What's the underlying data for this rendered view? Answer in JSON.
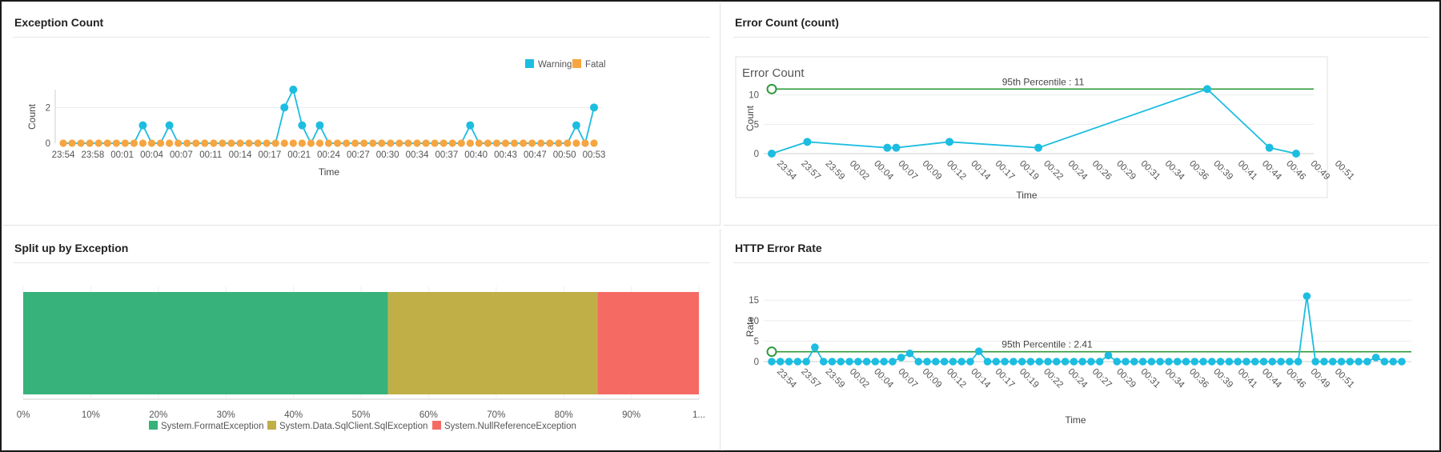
{
  "panels": {
    "exception_count": {
      "title": "Exception Count"
    },
    "error_count": {
      "title": "Error Count (count)"
    },
    "split_by_exception": {
      "title": "Split up by Exception"
    },
    "http_error_rate": {
      "title": "HTTP Error Rate"
    }
  },
  "colors": {
    "warning": "#1cbde0",
    "fatal": "#f6a540",
    "percentile_line": "#2e9b3a",
    "format_exception": "#37b27a",
    "sqlclient_exception": "#c0ae47",
    "nullref_exception": "#f56b63"
  },
  "chart_data": [
    {
      "type": "line",
      "panel": "exception_count",
      "xlabel": "Time",
      "ylabel": "Count",
      "ylim": [
        0,
        3
      ],
      "yticks": [
        0,
        2
      ],
      "x_tick_labels": [
        "23:54",
        "23:58",
        "00:01",
        "00:04",
        "00:07",
        "00:11",
        "00:14",
        "00:17",
        "00:21",
        "00:24",
        "00:27",
        "00:30",
        "00:34",
        "00:37",
        "00:40",
        "00:43",
        "00:47",
        "00:50",
        "00:53"
      ],
      "legend": {
        "position": "top-right",
        "entries": [
          "Warning",
          "Fatal"
        ]
      },
      "series": [
        {
          "name": "Warning",
          "values": [
            0,
            0,
            0,
            0,
            0,
            0,
            0,
            0,
            0,
            1,
            0,
            0,
            1,
            0,
            0,
            0,
            0,
            0,
            0,
            0,
            0,
            0,
            0,
            0,
            0,
            2,
            3,
            1,
            0,
            1,
            0,
            0,
            0,
            0,
            0,
            0,
            0,
            0,
            0,
            0,
            0,
            0,
            0,
            0,
            0,
            0,
            1,
            0,
            0,
            0,
            0,
            0,
            0,
            0,
            0,
            0,
            0,
            0,
            1,
            0,
            2
          ]
        },
        {
          "name": "Fatal",
          "values": [
            0,
            0,
            0,
            0,
            0,
            0,
            0,
            0,
            0,
            0,
            0,
            0,
            0,
            0,
            0,
            0,
            0,
            0,
            0,
            0,
            0,
            0,
            0,
            0,
            0,
            0,
            0,
            0,
            0,
            0,
            0,
            0,
            0,
            0,
            0,
            0,
            0,
            0,
            0,
            0,
            0,
            0,
            0,
            0,
            0,
            0,
            0,
            0,
            0,
            0,
            0,
            0,
            0,
            0,
            0,
            0,
            0,
            0,
            0,
            0,
            0
          ]
        }
      ]
    },
    {
      "type": "line",
      "panel": "error_count",
      "title": "Error Count",
      "xlabel": "Time",
      "ylabel": "Count",
      "ylim": [
        0,
        12
      ],
      "yticks": [
        0,
        5,
        10
      ],
      "x_tick_labels": [
        "23:54",
        "23:57",
        "23:59",
        "00:02",
        "00:04",
        "00:07",
        "00:09",
        "00:12",
        "00:14",
        "00:17",
        "00:19",
        "00:22",
        "00:24",
        "00:26",
        "00:29",
        "00:31",
        "00:34",
        "00:36",
        "00:39",
        "00:41",
        "00:44",
        "00:46",
        "00:49",
        "00:51"
      ],
      "percentile": {
        "label": "95th Percentile : 11",
        "value": 11
      },
      "series": [
        {
          "name": "Error Count",
          "points": [
            {
              "x": "23:54",
              "y": 0
            },
            {
              "x": "23:58",
              "y": 2
            },
            {
              "x": "00:07",
              "y": 1
            },
            {
              "x": "00:08",
              "y": 1
            },
            {
              "x": "00:14",
              "y": 2
            },
            {
              "x": "00:24",
              "y": 1
            },
            {
              "x": "00:43",
              "y": 11
            },
            {
              "x": "00:50",
              "y": 1
            },
            {
              "x": "00:53",
              "y": 0
            }
          ]
        }
      ]
    },
    {
      "type": "bar",
      "panel": "split_by_exception",
      "orientation": "horizontal-stacked-100",
      "x_tick_labels": [
        "0%",
        "10%",
        "20%",
        "30%",
        "40%",
        "50%",
        "60%",
        "70%",
        "80%",
        "90%",
        "1..."
      ],
      "legend": {
        "position": "bottom"
      },
      "series": [
        {
          "name": "System.FormatException",
          "values": [
            54
          ]
        },
        {
          "name": "System.Data.SqlClient.SqlException",
          "values": [
            31
          ]
        },
        {
          "name": "System.NullReferenceException",
          "values": [
            15
          ]
        }
      ]
    },
    {
      "type": "line",
      "panel": "http_error_rate",
      "xlabel": "Time",
      "ylabel": "Rate",
      "ylim": [
        0,
        17
      ],
      "yticks": [
        0,
        5,
        10,
        15
      ],
      "x_tick_labels": [
        "23:54",
        "23:57",
        "23:59",
        "00:02",
        "00:04",
        "00:07",
        "00:09",
        "00:12",
        "00:14",
        "00:17",
        "00:19",
        "00:22",
        "00:24",
        "00:27",
        "00:29",
        "00:31",
        "00:34",
        "00:36",
        "00:39",
        "00:41",
        "00:44",
        "00:46",
        "00:49",
        "00:51"
      ],
      "percentile": {
        "label": "95th Percentile : 2.41",
        "value": 2.41
      },
      "series": [
        {
          "name": "Rate",
          "values": [
            0,
            0,
            0,
            0,
            0,
            3.5,
            0,
            0,
            0,
            0,
            0,
            0,
            0,
            0,
            0,
            1,
            2,
            0,
            0,
            0,
            0,
            0,
            0,
            0,
            2.5,
            0,
            0,
            0,
            0,
            0,
            0,
            0,
            0,
            0,
            0,
            0,
            0,
            0,
            0,
            1.5,
            0,
            0,
            0,
            0,
            0,
            0,
            0,
            0,
            0,
            0,
            0,
            0,
            0,
            0,
            0,
            0,
            0,
            0,
            0,
            0,
            0,
            0,
            16,
            0,
            0,
            0,
            0,
            0,
            0,
            0,
            1,
            0,
            0,
            0
          ]
        }
      ]
    }
  ]
}
